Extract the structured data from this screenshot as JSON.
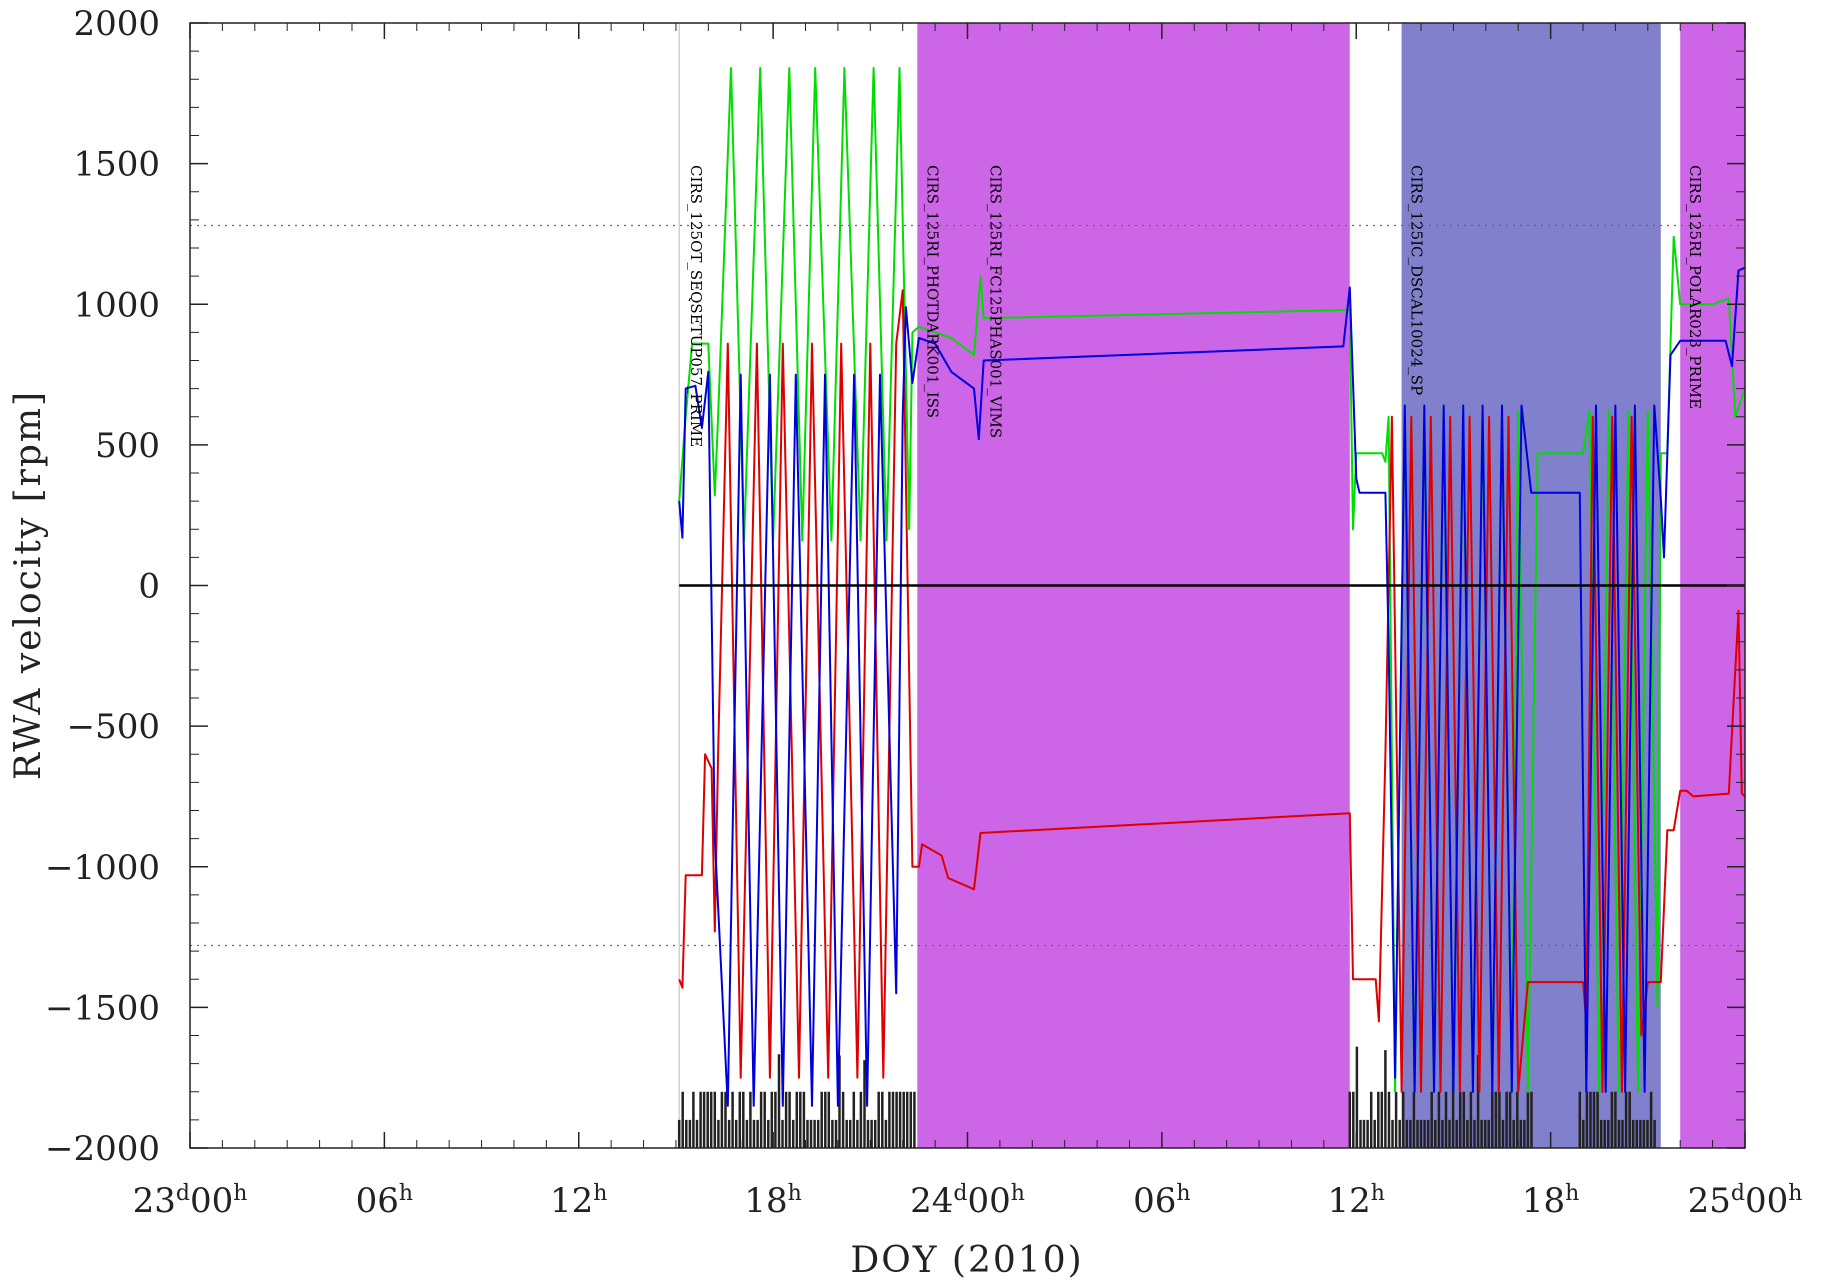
{
  "chart_data": {
    "type": "line",
    "xlabel": "DOY (2010)",
    "ylabel": "RWA velocity [rpm]",
    "xlim_hours": [
      0,
      48
    ],
    "ylim": [
      -2000,
      2000
    ],
    "x_ticks": [
      {
        "h": 0,
        "day": "23",
        "hour": "00"
      },
      {
        "h": 6,
        "day": "",
        "hour": "06"
      },
      {
        "h": 12,
        "day": "",
        "hour": "12"
      },
      {
        "h": 18,
        "day": "",
        "hour": "18"
      },
      {
        "h": 24,
        "day": "24",
        "hour": "00"
      },
      {
        "h": 30,
        "day": "",
        "hour": "06"
      },
      {
        "h": 36,
        "day": "",
        "hour": "12"
      },
      {
        "h": 42,
        "day": "",
        "hour": "18"
      },
      {
        "h": 48,
        "day": "25",
        "hour": "00"
      }
    ],
    "y_ticks": [
      2000,
      1500,
      1000,
      500,
      0,
      -500,
      -1000,
      -1500,
      -2000
    ],
    "limit_lines": [
      1280,
      -1280
    ],
    "zero_line": 0,
    "shaded_regions": [
      {
        "x0": 22.45,
        "x1": 35.8,
        "color": "#cc66e6"
      },
      {
        "x0": 37.4,
        "x1": 45.4,
        "color": "#8080cc"
      },
      {
        "x0": 46.0,
        "x1": 48.0,
        "color": "#cc66e6"
      }
    ],
    "annotations": [
      {
        "x": 15.15,
        "text": "CIRS_125OT_SEQSETUP057_PRIME"
      },
      {
        "x": 22.45,
        "text": "CIRS_125RI_PHOTDARK001_ISS"
      },
      {
        "x": 24.4,
        "text": "CIRS_125RI_FC125PHAS001_VIMS"
      },
      {
        "x": 37.4,
        "text": "CIRS_125IC_DSCAL10024_SP"
      },
      {
        "x": 46.0,
        "text": "CIRS_125RI_POLAR023_PRIME"
      }
    ],
    "series": [
      {
        "color": "#00dd00",
        "values": [
          [
            15.1,
            300
          ],
          [
            15.3,
            600
          ],
          [
            15.5,
            860
          ],
          [
            16.0,
            860
          ],
          [
            16.2,
            320
          ],
          [
            16.3,
            600
          ],
          [
            16.7,
            1840
          ],
          [
            17.1,
            160
          ],
          [
            17.6,
            1840
          ],
          [
            18.0,
            160
          ],
          [
            18.5,
            1840
          ],
          [
            18.9,
            160
          ],
          [
            19.3,
            1840
          ],
          [
            19.8,
            160
          ],
          [
            20.2,
            1840
          ],
          [
            20.7,
            160
          ],
          [
            21.1,
            1840
          ],
          [
            21.5,
            160
          ],
          [
            21.9,
            1840
          ],
          [
            22.2,
            200
          ],
          [
            22.3,
            900
          ],
          [
            22.5,
            920
          ],
          [
            23.0,
            900
          ],
          [
            23.5,
            880
          ],
          [
            24.2,
            820
          ],
          [
            24.4,
            1100
          ],
          [
            24.5,
            950
          ],
          [
            35.8,
            980
          ],
          [
            35.9,
            200
          ],
          [
            36.0,
            470
          ],
          [
            36.8,
            470
          ],
          [
            36.9,
            440
          ],
          [
            37.0,
            600
          ],
          [
            37.2,
            -1800
          ],
          [
            37.5,
            620
          ],
          [
            37.8,
            -1800
          ],
          [
            38.1,
            620
          ],
          [
            38.4,
            -1800
          ],
          [
            38.7,
            620
          ],
          [
            39.0,
            -1800
          ],
          [
            39.3,
            620
          ],
          [
            39.6,
            -1800
          ],
          [
            39.9,
            620
          ],
          [
            40.2,
            -1800
          ],
          [
            40.5,
            620
          ],
          [
            40.8,
            -1800
          ],
          [
            41.0,
            620
          ],
          [
            41.3,
            -1800
          ],
          [
            41.6,
            470
          ],
          [
            43.0,
            470
          ],
          [
            43.2,
            620
          ],
          [
            43.5,
            -1800
          ],
          [
            43.8,
            620
          ],
          [
            44.1,
            -1800
          ],
          [
            44.4,
            620
          ],
          [
            44.7,
            -1800
          ],
          [
            45.0,
            620
          ],
          [
            45.3,
            -1500
          ],
          [
            45.4,
            470
          ],
          [
            45.6,
            470
          ],
          [
            45.8,
            1240
          ],
          [
            46.0,
            1000
          ],
          [
            47.0,
            1000
          ],
          [
            47.5,
            1020
          ],
          [
            47.7,
            600
          ],
          [
            48.0,
            700
          ]
        ]
      },
      {
        "color": "#dd0000",
        "values": [
          [
            15.1,
            -1400
          ],
          [
            15.2,
            -1430
          ],
          [
            15.3,
            -1030
          ],
          [
            15.8,
            -1030
          ],
          [
            15.9,
            -600
          ],
          [
            16.1,
            -650
          ],
          [
            16.2,
            -1230
          ],
          [
            16.3,
            -600
          ],
          [
            16.6,
            860
          ],
          [
            17.0,
            -1750
          ],
          [
            17.5,
            860
          ],
          [
            17.9,
            -1750
          ],
          [
            18.3,
            860
          ],
          [
            18.8,
            -1750
          ],
          [
            19.2,
            860
          ],
          [
            19.7,
            -1750
          ],
          [
            20.1,
            860
          ],
          [
            20.6,
            -1750
          ],
          [
            21.0,
            860
          ],
          [
            21.4,
            -1750
          ],
          [
            21.8,
            860
          ],
          [
            22.0,
            1050
          ],
          [
            22.3,
            -1000
          ],
          [
            22.5,
            -1000
          ],
          [
            22.6,
            -920
          ],
          [
            23.2,
            -960
          ],
          [
            23.4,
            -1040
          ],
          [
            24.2,
            -1080
          ],
          [
            24.4,
            -880
          ],
          [
            35.8,
            -810
          ],
          [
            35.9,
            -1400
          ],
          [
            36.6,
            -1400
          ],
          [
            36.7,
            -1550
          ],
          [
            36.9,
            -600
          ],
          [
            37.1,
            600
          ],
          [
            37.4,
            -1800
          ],
          [
            37.7,
            600
          ],
          [
            38.0,
            -1800
          ],
          [
            38.3,
            600
          ],
          [
            38.6,
            -1800
          ],
          [
            38.9,
            600
          ],
          [
            39.2,
            -1800
          ],
          [
            39.5,
            600
          ],
          [
            39.8,
            -1800
          ],
          [
            40.1,
            600
          ],
          [
            40.4,
            -1800
          ],
          [
            40.7,
            600
          ],
          [
            41.0,
            -1800
          ],
          [
            41.3,
            -1410
          ],
          [
            43.0,
            -1410
          ],
          [
            43.1,
            -1550
          ],
          [
            43.3,
            600
          ],
          [
            43.6,
            -1800
          ],
          [
            43.9,
            600
          ],
          [
            44.2,
            -1800
          ],
          [
            44.5,
            600
          ],
          [
            44.8,
            -1600
          ],
          [
            45.0,
            -1410
          ],
          [
            45.4,
            -1410
          ],
          [
            45.6,
            -870
          ],
          [
            45.8,
            -870
          ],
          [
            46.0,
            -730
          ],
          [
            46.2,
            -730
          ],
          [
            46.4,
            -750
          ],
          [
            47.5,
            -740
          ],
          [
            47.7,
            -300
          ],
          [
            47.8,
            -90
          ],
          [
            47.9,
            -740
          ],
          [
            48.0,
            -750
          ]
        ]
      },
      {
        "color": "#0000dd",
        "values": [
          [
            15.1,
            300
          ],
          [
            15.2,
            170
          ],
          [
            15.3,
            700
          ],
          [
            15.6,
            710
          ],
          [
            15.8,
            560
          ],
          [
            16.0,
            760
          ],
          [
            16.2,
            -900
          ],
          [
            16.6,
            -1850
          ],
          [
            17.0,
            750
          ],
          [
            17.4,
            -1850
          ],
          [
            17.9,
            750
          ],
          [
            18.3,
            -1850
          ],
          [
            18.7,
            750
          ],
          [
            19.2,
            -1850
          ],
          [
            19.6,
            750
          ],
          [
            20.0,
            -1850
          ],
          [
            20.5,
            750
          ],
          [
            20.9,
            -1850
          ],
          [
            21.3,
            750
          ],
          [
            21.8,
            -1450
          ],
          [
            22.0,
            600
          ],
          [
            22.1,
            990
          ],
          [
            22.3,
            720
          ],
          [
            22.5,
            880
          ],
          [
            23.0,
            860
          ],
          [
            23.5,
            760
          ],
          [
            24.2,
            700
          ],
          [
            24.35,
            520
          ],
          [
            24.5,
            800
          ],
          [
            35.6,
            850
          ],
          [
            35.8,
            1060
          ],
          [
            36.0,
            380
          ],
          [
            36.1,
            330
          ],
          [
            36.9,
            330
          ],
          [
            37.0,
            -200
          ],
          [
            37.2,
            -1750
          ],
          [
            37.5,
            640
          ],
          [
            37.8,
            -1800
          ],
          [
            38.1,
            640
          ],
          [
            38.4,
            -1800
          ],
          [
            38.7,
            640
          ],
          [
            39.0,
            -1800
          ],
          [
            39.3,
            640
          ],
          [
            39.6,
            -1800
          ],
          [
            39.9,
            640
          ],
          [
            40.2,
            -1800
          ],
          [
            40.5,
            640
          ],
          [
            40.8,
            -1800
          ],
          [
            41.1,
            640
          ],
          [
            41.4,
            330
          ],
          [
            42.9,
            330
          ],
          [
            43.1,
            -1800
          ],
          [
            43.4,
            640
          ],
          [
            43.7,
            -1800
          ],
          [
            44.0,
            640
          ],
          [
            44.3,
            -1800
          ],
          [
            44.6,
            640
          ],
          [
            44.9,
            -1800
          ],
          [
            45.2,
            640
          ],
          [
            45.4,
            310
          ],
          [
            45.5,
            100
          ],
          [
            45.7,
            820
          ],
          [
            46.0,
            870
          ],
          [
            47.4,
            870
          ],
          [
            47.6,
            780
          ],
          [
            47.8,
            1120
          ],
          [
            48.0,
            1130
          ]
        ]
      },
      {
        "color": "#222222",
        "values": []
      }
    ]
  }
}
